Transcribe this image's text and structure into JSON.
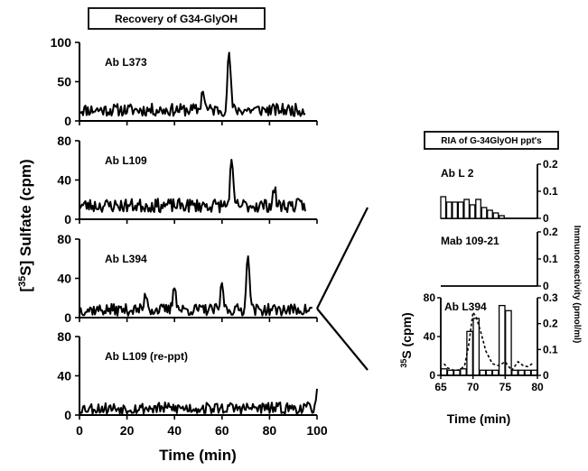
{
  "chart_data": [
    {
      "type": "line",
      "title": "Recovery of G34-GlyOH",
      "xlabel": "Time (min)",
      "ylabel": "[35S] Sulfate (cpm)",
      "ylabel_sup": "35",
      "xlim": [
        0,
        100
      ],
      "x_ticks": [
        "0",
        "20",
        "40",
        "60",
        "80",
        "100"
      ],
      "panels": [
        {
          "label": "Ab L373",
          "ylim": [
            0,
            100
          ],
          "y_ticks": [
            "0",
            "50",
            "100"
          ],
          "baseline": 14,
          "noise": 8,
          "x_end": 95,
          "seed": 11,
          "peaks": [
            {
              "x": 52,
              "y": 40
            },
            {
              "x": 63,
              "y": 88
            }
          ]
        },
        {
          "label": "Ab L109",
          "ylim": [
            0,
            80
          ],
          "y_ticks": [
            "0",
            "40",
            "80"
          ],
          "baseline": 14,
          "noise": 7,
          "x_end": 95,
          "seed": 23,
          "peaks": [
            {
              "x": 64,
              "y": 57
            },
            {
              "x": 82,
              "y": 30
            }
          ]
        },
        {
          "label": "Ab L394",
          "ylim": [
            0,
            80
          ],
          "y_ticks": [
            "0",
            "40",
            "80"
          ],
          "baseline": 8,
          "noise": 6,
          "x_end": 98,
          "seed": 37,
          "peaks": [
            {
              "x": 28,
              "y": 25
            },
            {
              "x": 40,
              "y": 35
            },
            {
              "x": 60,
              "y": 33
            },
            {
              "x": 71,
              "y": 68
            }
          ]
        },
        {
          "label": "Ab L109 (re-ppt)",
          "ylim": [
            0,
            80
          ],
          "y_ticks": [
            "0",
            "40",
            "80"
          ],
          "baseline": 7,
          "noise": 6,
          "x_end": 100,
          "seed": 53,
          "peaks": [
            {
              "x": 100,
              "y": 22
            }
          ]
        }
      ]
    },
    {
      "type": "bar",
      "title": "RIA of G-34GlyOH ppt's",
      "right_axis_label": "Immunoreactivity (pmol/ml)",
      "panels": [
        {
          "label": "Ab L 2",
          "ylim": [
            0,
            0.2
          ],
          "y_ticks": [
            "0",
            "0.1",
            "0.2"
          ],
          "values": [
            0.08,
            0.06,
            0.06,
            0.06,
            0.07,
            0.05,
            0.07,
            0.04,
            0.03,
            0.02,
            0.01
          ]
        },
        {
          "label": "Mab 109-21",
          "ylim": [
            0,
            0.2
          ],
          "y_ticks": [
            "0",
            "0.1",
            "0.2"
          ],
          "values": []
        },
        {
          "label": "Ab L394",
          "xlabel": "Time (min)",
          "ylabel": "35S (cpm)",
          "ylabel_sup": "35",
          "xlim": [
            65,
            80
          ],
          "x_ticks": [
            "65",
            "70",
            "75",
            "80"
          ],
          "left_ylim": [
            0,
            80
          ],
          "left_y_ticks": [
            "0",
            "40",
            "80"
          ],
          "right_ylim": [
            0,
            0.3
          ],
          "right_y_ticks": [
            "0",
            "0.1",
            "0.2",
            "0.3"
          ],
          "bars": [
            {
              "x": 65.5,
              "v": 0.025
            },
            {
              "x": 66.5,
              "v": 0.02
            },
            {
              "x": 67.5,
              "v": 0.02
            },
            {
              "x": 68.5,
              "v": 0.025
            },
            {
              "x": 69.5,
              "v": 0.17
            },
            {
              "x": 70.5,
              "v": 0.22
            },
            {
              "x": 71.5,
              "v": 0.02
            },
            {
              "x": 72.5,
              "v": 0.02
            },
            {
              "x": 73.5,
              "v": 0.02
            },
            {
              "x": 74.5,
              "v": 0.27
            },
            {
              "x": 75.5,
              "v": 0.25
            },
            {
              "x": 76.5,
              "v": 0.02
            },
            {
              "x": 77.5,
              "v": 0.02
            },
            {
              "x": 78.5,
              "v": 0.02
            },
            {
              "x": 79.5,
              "v": 0.02
            }
          ],
          "trace": [
            {
              "x": 65.5,
              "y": 12
            },
            {
              "x": 66,
              "y": 8
            },
            {
              "x": 66.6,
              "y": 6
            },
            {
              "x": 67.3,
              "y": 5
            },
            {
              "x": 68,
              "y": 6
            },
            {
              "x": 68.7,
              "y": 10
            },
            {
              "x": 69.3,
              "y": 30
            },
            {
              "x": 70,
              "y": 65
            },
            {
              "x": 70.5,
              "y": 60
            },
            {
              "x": 71.2,
              "y": 45
            },
            {
              "x": 72,
              "y": 25
            },
            {
              "x": 73,
              "y": 12
            },
            {
              "x": 74,
              "y": 10
            },
            {
              "x": 75,
              "y": 14
            },
            {
              "x": 76,
              "y": 5
            },
            {
              "x": 77,
              "y": 14
            },
            {
              "x": 77.8,
              "y": 10
            },
            {
              "x": 78.5,
              "y": 9
            },
            {
              "x": 79.2,
              "y": 12
            }
          ]
        }
      ]
    }
  ]
}
